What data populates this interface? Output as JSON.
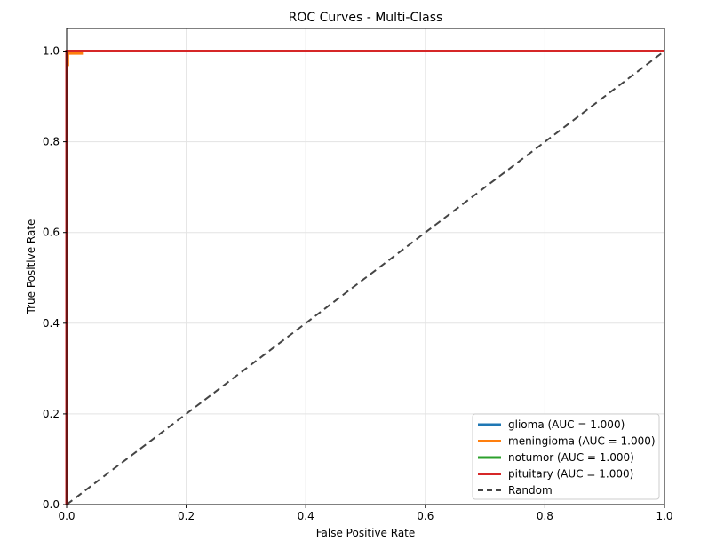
{
  "chart_data": {
    "type": "line",
    "title": "ROC Curves - Multi-Class",
    "xlabel": "False Positive Rate",
    "ylabel": "True Positive Rate",
    "xlim": [
      0.0,
      1.0
    ],
    "ylim": [
      0.0,
      1.05
    ],
    "xticks": [
      "0.0",
      "0.2",
      "0.4",
      "0.6",
      "0.8",
      "1.0"
    ],
    "yticks": [
      "0.0",
      "0.2",
      "0.4",
      "0.6",
      "0.8",
      "1.0"
    ],
    "grid": true,
    "legend_position": "lower-right",
    "series": [
      {
        "name": "glioma (AUC = 1.000)",
        "color": "#1f77b4",
        "x": [
          0.0,
          0.0,
          1.0
        ],
        "y": [
          0.0,
          1.0,
          1.0
        ]
      },
      {
        "name": "meningioma (AUC = 1.000)",
        "color": "#ff7f0e",
        "x": [
          0.0,
          0.0,
          0.002,
          0.002,
          0.025,
          0.025,
          1.0
        ],
        "y": [
          0.0,
          0.97,
          0.97,
          0.995,
          0.995,
          1.0,
          1.0
        ]
      },
      {
        "name": "notumor (AUC = 1.000)",
        "color": "#2ca02c",
        "x": [
          0.0,
          0.0,
          1.0
        ],
        "y": [
          0.0,
          1.0,
          1.0
        ]
      },
      {
        "name": "pituitary (AUC = 1.000)",
        "color": "#d62728",
        "x": [
          0.0,
          0.0,
          1.0
        ],
        "y": [
          0.0,
          1.0,
          1.0
        ]
      },
      {
        "name": "Random",
        "color": "#444444",
        "dashed": true,
        "x": [
          0.0,
          1.0
        ],
        "y": [
          0.0,
          1.0
        ]
      }
    ]
  }
}
